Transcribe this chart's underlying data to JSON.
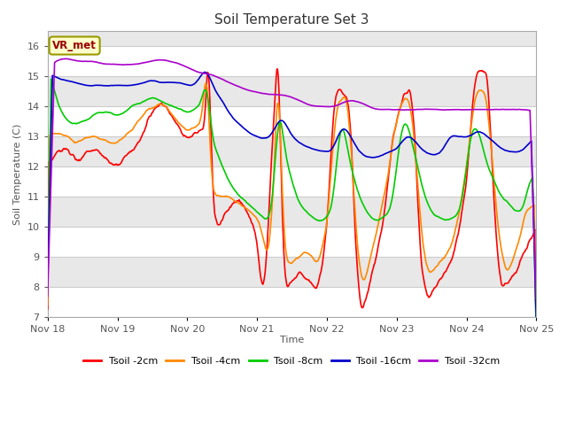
{
  "title": "Soil Temperature Set 3",
  "xlabel": "Time",
  "ylabel": "Soil Temperature (C)",
  "ylim": [
    7.0,
    16.5
  ],
  "xlim": [
    0,
    7.0
  ],
  "background_color": "#ffffff",
  "plot_bg_color": "#e8e8e8",
  "grid_color": "#ffffff",
  "annotation_text": "VR_met",
  "annotation_bg": "#ffffcc",
  "annotation_border": "#999900",
  "series": [
    {
      "label": "Tsoil -2cm",
      "color": "#ff0000"
    },
    {
      "label": "Tsoil -4cm",
      "color": "#ff8800"
    },
    {
      "label": "Tsoil -8cm",
      "color": "#00cc00"
    },
    {
      "label": "Tsoil -16cm",
      "color": "#0000cc"
    },
    {
      "label": "Tsoil -32cm",
      "color": "#aa00cc"
    }
  ],
  "x_tick_labels": [
    "Nov 18",
    "Nov 19",
    "Nov 20",
    "Nov 21",
    "Nov 22",
    "Nov 23",
    "Nov 24",
    "Nov 25"
  ],
  "x_tick_positions": [
    0,
    1,
    2,
    3,
    4,
    5,
    6,
    7
  ],
  "y_ticks": [
    7.0,
    8.0,
    9.0,
    10.0,
    11.0,
    12.0,
    13.0,
    14.0,
    15.0,
    16.0
  ]
}
